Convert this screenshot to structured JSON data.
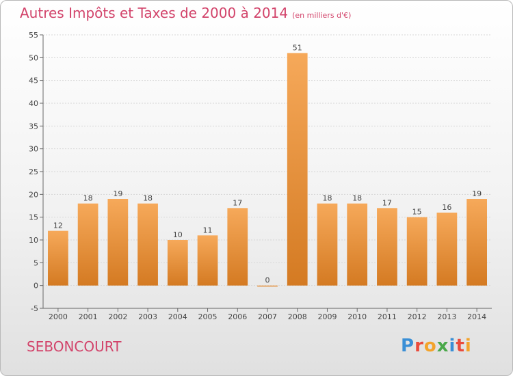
{
  "title": "Autres Impôts et Taxes de 2000 à 2014",
  "subtitle": "(en milliers d'€)",
  "commune": "SEBONCOURT",
  "logo_text": "Proxiti",
  "colors": {
    "bar_top": "#f6a95a",
    "bar_bottom": "#d47a22",
    "title": "#d2436a"
  },
  "chart_data": {
    "type": "bar",
    "categories": [
      "2000",
      "2001",
      "2002",
      "2003",
      "2004",
      "2005",
      "2006",
      "2007",
      "2008",
      "2009",
      "2010",
      "2011",
      "2012",
      "2013",
      "2014"
    ],
    "values": [
      12,
      18,
      19,
      18,
      10,
      11,
      17,
      0,
      51,
      18,
      18,
      17,
      15,
      16,
      19
    ],
    "ylim": [
      -5,
      55
    ],
    "yticks": [
      -5,
      0,
      5,
      10,
      15,
      20,
      25,
      30,
      35,
      40,
      45,
      50,
      55
    ],
    "grid": true,
    "xlabel": "",
    "ylabel": ""
  }
}
